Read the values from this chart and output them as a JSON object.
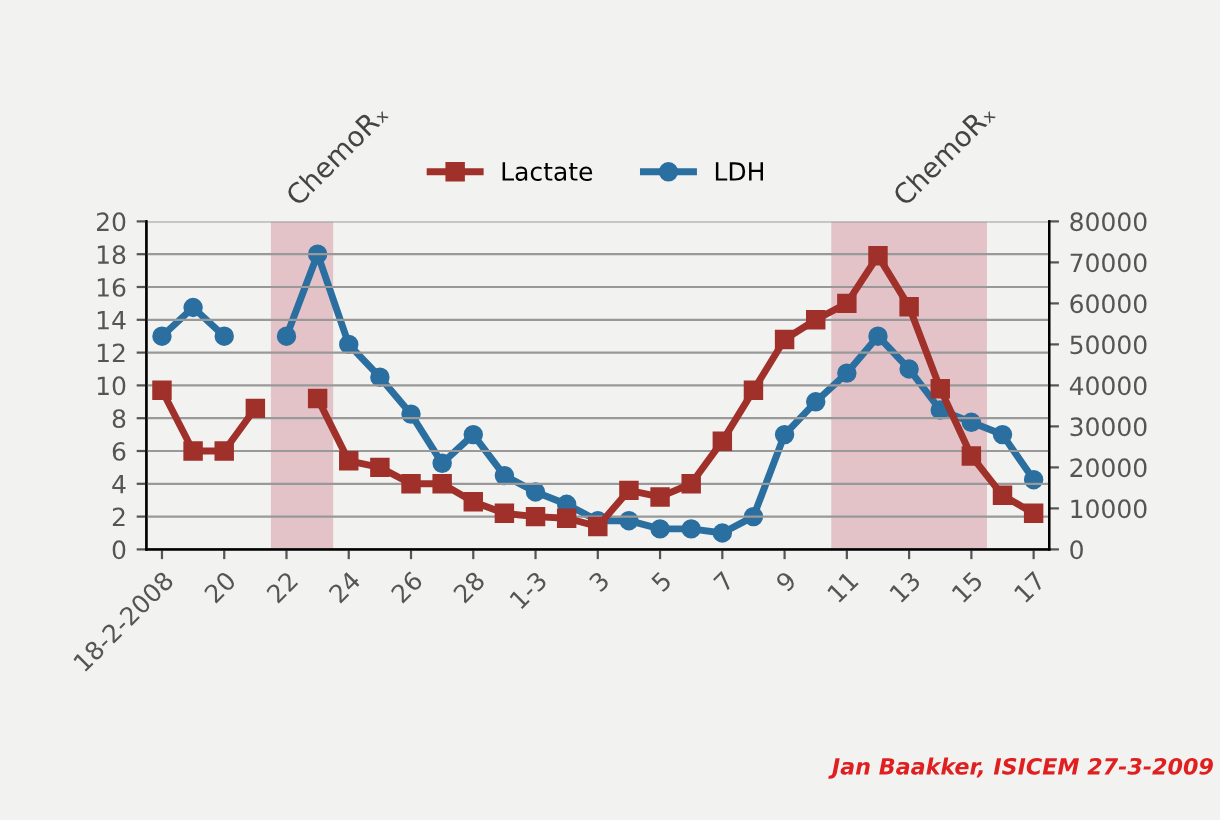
{
  "chart_data": {
    "type": "line",
    "x": [
      "2008-02-18",
      "2008-02-19",
      "2008-02-20",
      "2008-02-21",
      "2008-02-22",
      "2008-02-23",
      "2008-02-24",
      "2008-02-25",
      "2008-02-26",
      "2008-02-27",
      "2008-02-28",
      "2008-02-29",
      "2008-03-01",
      "2008-03-02",
      "2008-03-03",
      "2008-03-04",
      "2008-03-05",
      "2008-03-06",
      "2008-03-07",
      "2008-03-08",
      "2008-03-09",
      "2008-03-10",
      "2008-03-11",
      "2008-03-12",
      "2008-03-13",
      "2008-03-14",
      "2008-03-15",
      "2008-03-16",
      "2008-03-17"
    ],
    "series": [
      {
        "name": "Lactate",
        "color": "#a0302a",
        "marker": "square",
        "values": [
          9.7,
          6.0,
          6.0,
          8.6,
          null,
          9.2,
          5.4,
          5.0,
          4.0,
          4.0,
          2.9,
          2.2,
          2.0,
          1.9,
          1.4,
          3.6,
          3.2,
          4.0,
          6.6,
          9.7,
          12.8,
          14.0,
          15.0,
          17.9,
          14.8,
          9.8,
          5.7,
          3.3,
          2.2
        ]
      },
      {
        "name": "LDH",
        "color": "#2a6fa0",
        "marker": "circle",
        "axis": "y2",
        "values": [
          52000,
          59000,
          52000,
          null,
          52000,
          72000,
          50000,
          42000,
          33000,
          21000,
          28000,
          18000,
          14000,
          11000,
          7000,
          7000,
          5000,
          5000,
          4000,
          8000,
          28000,
          36000,
          43000,
          52000,
          44000,
          34000,
          31000,
          28000,
          17000
        ]
      }
    ],
    "xlim": [
      "2008-02-17T12:00",
      "2008-03-17T12:00"
    ],
    "xticks": [
      {
        "value": "2008-02-18",
        "label": "18-2-2008"
      },
      {
        "value": "2008-02-20",
        "label": "20"
      },
      {
        "value": "2008-02-22",
        "label": "22"
      },
      {
        "value": "2008-02-24",
        "label": "24"
      },
      {
        "value": "2008-02-26",
        "label": "26"
      },
      {
        "value": "2008-02-28",
        "label": "28"
      },
      {
        "value": "2008-03-01",
        "label": "1-3"
      },
      {
        "value": "2008-03-03",
        "label": "3"
      },
      {
        "value": "2008-03-05",
        "label": "5"
      },
      {
        "value": "2008-03-07",
        "label": "7"
      },
      {
        "value": "2008-03-09",
        "label": "9"
      },
      {
        "value": "2008-03-11",
        "label": "11"
      },
      {
        "value": "2008-03-13",
        "label": "13"
      },
      {
        "value": "2008-03-15",
        "label": "15"
      },
      {
        "value": "2008-03-17",
        "label": "17"
      }
    ],
    "ylim": [
      0,
      20
    ],
    "yticks": [
      0,
      2,
      4,
      6,
      8,
      10,
      12,
      14,
      16,
      18,
      20
    ],
    "y2lim": [
      0,
      80000
    ],
    "y2ticks": [
      0,
      10000,
      20000,
      30000,
      40000,
      50000,
      60000,
      70000,
      80000
    ],
    "bands": [
      {
        "axis": "x",
        "from": "2008-02-21T12:00",
        "to": "2008-02-23T12:00",
        "label": "ChemoRₓ",
        "color": "#d9a3ad"
      },
      {
        "axis": "x",
        "from": "2008-03-10T12:00",
        "to": "2008-03-15T12:00",
        "label": "ChemoRₓ",
        "color": "#d9a3ad"
      }
    ],
    "grid": "y",
    "legend": "top",
    "line_style": "solid",
    "annotations": [
      "Jan Baakker, ISICEM 27-3-2009"
    ]
  }
}
